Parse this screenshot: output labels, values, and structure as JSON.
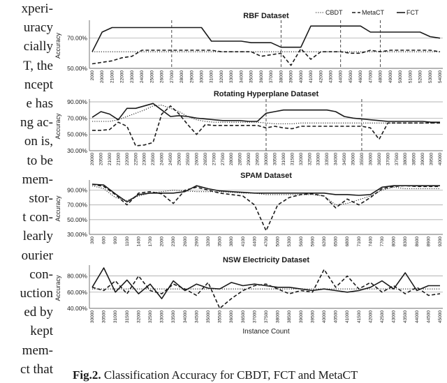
{
  "left_text": [
    "xperi-",
    "uracy",
    "cially",
    "T, the",
    "ncept",
    "e has",
    "ng ac-",
    "on is,",
    "to  be",
    "mem-",
    "stor-",
    "t con-",
    "learly",
    "ourier",
    "con-",
    "uction",
    "ed by",
    "kept",
    "mem-",
    "ct that"
  ],
  "caption": {
    "label": "Fig.2.",
    "text": "Classification Accuracy for CBDT, FCT and MetaCT"
  },
  "legend": [
    {
      "name": "CBDT",
      "style": "dotted"
    },
    {
      "name": "MetaCT",
      "style": "dashed"
    },
    {
      "name": "FCT",
      "style": "solid"
    }
  ],
  "colors": {
    "line": "#1a1a1a",
    "grid": "#9a9a9a",
    "axis": "#555555"
  },
  "chart_data": [
    {
      "type": "line",
      "title": "RBF Dataset",
      "ylabel": "Accuracy",
      "xlabel": "",
      "ylim": [
        50,
        80
      ],
      "yticks": [
        "50.00%",
        "70.00%"
      ],
      "ytick_values": [
        50,
        70
      ],
      "categories": [
        "2000",
        "20000",
        "21000",
        "22000",
        "23000",
        "24000",
        "25000",
        "26000",
        "27000",
        "28000",
        "29000",
        "30000",
        "31000",
        "32000",
        "33000",
        "34000",
        "35000",
        "36000",
        "37000",
        "38000",
        "39000",
        "40000",
        "41000",
        "42000",
        "43000",
        "44000",
        "45000",
        "46000",
        "47000",
        "48000",
        "49000",
        "50000",
        "51000",
        "52000",
        "53000",
        "54000"
      ],
      "series": [
        {
          "name": "CBDT",
          "values": [
            61,
            61,
            61,
            61,
            61,
            61,
            61,
            61,
            61,
            61,
            61,
            61,
            61,
            61,
            61,
            61,
            61,
            61,
            61,
            61,
            61,
            61,
            61,
            61,
            61,
            61,
            61,
            61,
            61,
            61,
            61,
            61,
            61,
            61,
            61,
            61
          ]
        },
        {
          "name": "MetaCT",
          "values": [
            53,
            54,
            55,
            57,
            58,
            62,
            62,
            62,
            62,
            62,
            62,
            62,
            62,
            61,
            61,
            61,
            61,
            58,
            59,
            60,
            52,
            63,
            56,
            61,
            61,
            61,
            60,
            60,
            62,
            61,
            62,
            62,
            62,
            62,
            62,
            61
          ]
        },
        {
          "name": "FCT",
          "values": [
            61,
            74,
            77,
            77,
            77,
            77,
            77,
            77,
            77,
            77,
            77,
            77,
            68,
            68,
            68,
            68,
            67,
            67,
            67,
            64,
            64,
            64,
            78,
            78,
            78,
            78,
            78,
            78,
            74,
            74,
            74,
            74,
            74,
            74,
            71,
            70
          ]
        }
      ],
      "vlines": [
        8,
        19,
        25,
        29
      ]
    },
    {
      "type": "line",
      "title": "Rotating Hyperplane Dataset",
      "ylabel": "Accuracy",
      "xlabel": "",
      "ylim": [
        30,
        90
      ],
      "yticks": [
        "30.00%",
        "50.00%",
        "70.00%",
        "90.00%"
      ],
      "ytick_values": [
        30,
        50,
        70,
        90
      ],
      "categories": [
        "20000",
        "20500",
        "21000",
        "21500",
        "22000",
        "22500",
        "23000",
        "23500",
        "24000",
        "24500",
        "25000",
        "25500",
        "26000",
        "26500",
        "27000",
        "27500",
        "28000",
        "28500",
        "29000",
        "29500",
        "30000",
        "30500",
        "31000",
        "31500",
        "32000",
        "32500",
        "33000",
        "33500",
        "34000",
        "34500",
        "35000",
        "35500",
        "36000",
        "36500",
        "37000",
        "37500",
        "38000",
        "38500",
        "39000",
        "39500",
        "40000"
      ],
      "series": [
        {
          "name": "CBDT",
          "values": [
            66,
            66,
            66,
            68,
            72,
            76,
            80,
            85,
            86,
            82,
            78,
            72,
            68,
            66,
            65,
            65,
            65,
            65,
            65,
            65,
            64,
            63,
            63,
            63,
            64,
            64,
            64,
            64,
            64,
            64,
            64,
            64,
            64,
            64,
            64,
            64,
            64,
            64,
            64,
            64,
            64
          ]
        },
        {
          "name": "MetaCT",
          "values": [
            55,
            55,
            56,
            65,
            60,
            36,
            37,
            40,
            75,
            85,
            75,
            62,
            50,
            62,
            61,
            61,
            61,
            61,
            61,
            61,
            58,
            60,
            58,
            57,
            60,
            60,
            60,
            60,
            60,
            60,
            60,
            60,
            58,
            44,
            64,
            64,
            64,
            64,
            64,
            64,
            64
          ]
        },
        {
          "name": "FCT",
          "values": [
            71,
            78,
            75,
            68,
            82,
            82,
            85,
            88,
            80,
            72,
            73,
            72,
            70,
            69,
            68,
            67,
            67,
            67,
            66,
            66,
            76,
            78,
            80,
            80,
            80,
            80,
            80,
            80,
            78,
            72,
            70,
            69,
            68,
            67,
            66,
            66,
            66,
            66,
            66,
            65,
            65
          ]
        }
      ],
      "vlines": [
        20,
        31
      ]
    },
    {
      "type": "line",
      "title": "SPAM Dataset",
      "ylabel": "Accuracy",
      "xlabel": "",
      "ylim": [
        30,
        100
      ],
      "yticks": [
        "30.00%",
        "50.00%",
        "70.00%",
        "90.00%"
      ],
      "ytick_values": [
        30,
        50,
        70,
        90
      ],
      "categories": [
        "300",
        "600",
        "900",
        "1100",
        "1400",
        "1700",
        "2000",
        "2300",
        "2600",
        "2900",
        "3200",
        "3500",
        "3800",
        "4100",
        "4400",
        "4700",
        "5000",
        "5300",
        "5600",
        "5900",
        "6200",
        "6500",
        "6800",
        "7100",
        "7400",
        "7700",
        "8000",
        "8300",
        "8600",
        "8900",
        "9200"
      ],
      "series": [
        {
          "name": "CBDT",
          "values": [
            96,
            92,
            80,
            76,
            82,
            86,
            88,
            90,
            89,
            88,
            88,
            88,
            87,
            86,
            86,
            84,
            84,
            84,
            84,
            84,
            82,
            70,
            72,
            77,
            82,
            90,
            94,
            92,
            92,
            92,
            92
          ]
        },
        {
          "name": "MetaCT",
          "values": [
            98,
            95,
            84,
            70,
            86,
            88,
            85,
            72,
            90,
            94,
            90,
            86,
            84,
            82,
            70,
            35,
            70,
            80,
            84,
            85,
            82,
            66,
            78,
            70,
            80,
            92,
            95,
            96,
            95,
            95,
            95
          ]
        },
        {
          "name": "FCT",
          "values": [
            98,
            97,
            85,
            74,
            84,
            86,
            86,
            86,
            88,
            96,
            92,
            89,
            88,
            87,
            86,
            86,
            86,
            86,
            86,
            86,
            86,
            84,
            84,
            83,
            84,
            94,
            96,
            96,
            96,
            96,
            96
          ]
        }
      ],
      "vlines": []
    },
    {
      "type": "line",
      "title": "NSW Electricity Dataset",
      "ylabel": "Accuracy",
      "xlabel": "Instance Count",
      "ylim": [
        40,
        90
      ],
      "yticks": [
        "40.00%",
        "60.00%",
        "80.00%"
      ],
      "ytick_values": [
        40,
        60,
        80
      ],
      "categories": [
        "30000",
        "30500",
        "31000",
        "31500",
        "32000",
        "32500",
        "33000",
        "33500",
        "34000",
        "34500",
        "35000",
        "35500",
        "36000",
        "36500",
        "37000",
        "37500",
        "38000",
        "38500",
        "39000",
        "39500",
        "40000",
        "40500",
        "41000",
        "41500",
        "42000",
        "42500",
        "43000",
        "43500",
        "44000",
        "44500",
        "45000"
      ],
      "series": [
        {
          "name": "CBDT",
          "values": [
            64,
            64,
            64,
            64,
            64,
            64,
            64,
            64,
            64,
            64,
            64,
            64,
            64,
            64,
            64,
            64,
            64,
            64,
            64,
            64,
            64,
            64,
            64,
            64,
            64,
            64,
            64,
            64,
            64,
            64,
            64
          ]
        },
        {
          "name": "MetaCT",
          "values": [
            66,
            62,
            74,
            58,
            80,
            62,
            58,
            70,
            64,
            56,
            72,
            40,
            52,
            62,
            68,
            70,
            64,
            58,
            62,
            60,
            88,
            66,
            80,
            64,
            72,
            60,
            68,
            58,
            66,
            56,
            58
          ]
        },
        {
          "name": "FCT",
          "values": [
            66,
            90,
            60,
            75,
            58,
            70,
            52,
            74,
            62,
            70,
            65,
            64,
            72,
            68,
            70,
            68,
            66,
            66,
            64,
            62,
            64,
            62,
            60,
            62,
            66,
            74,
            64,
            84,
            62,
            68,
            68
          ]
        }
      ],
      "vlines": []
    }
  ]
}
